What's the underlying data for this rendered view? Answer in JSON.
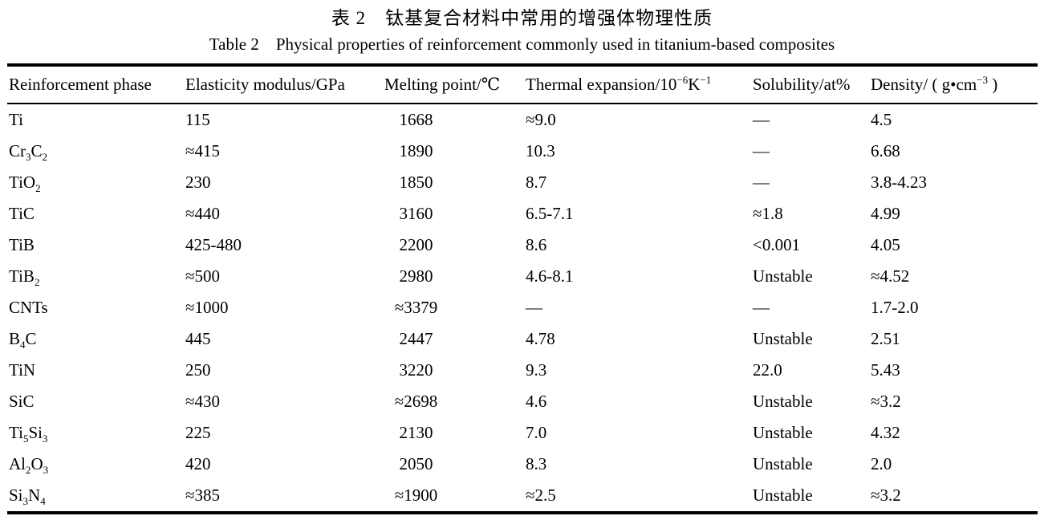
{
  "page": {
    "background_color": "#ffffff",
    "text_color": "#000000"
  },
  "titles": {
    "chinese": "表 2 钛基复合材料中常用的增强体物理性质",
    "english": "Table 2 Physical properties of reinforcement commonly used in titanium-based composites"
  },
  "table": {
    "columns": [
      {
        "key": "phase",
        "label": "Reinforcement phase"
      },
      {
        "key": "modulus",
        "label": "Elasticity modulus/GPa"
      },
      {
        "key": "melting",
        "label": "Melting point/℃"
      },
      {
        "key": "expansion",
        "label": "Thermal expansion/10^{−6}K^{−1}"
      },
      {
        "key": "solubility",
        "label": "Solubility/at%"
      },
      {
        "key": "density",
        "label": "Density/ ( g•cm^{−3} )"
      }
    ],
    "rows": [
      [
        "Ti",
        "115",
        "1668",
        "≈9.0",
        "—",
        "4.5"
      ],
      [
        "Cr_{3}C_{2}",
        "≈415",
        "1890",
        "10.3",
        "—",
        "6.68"
      ],
      [
        "TiO_{2}",
        "230",
        "1850",
        "8.7",
        "—",
        "3.8-4.23"
      ],
      [
        "TiC",
        "≈440",
        "3160",
        "6.5-7.1",
        "≈1.8",
        "4.99"
      ],
      [
        "TiB",
        "425-480",
        "2200",
        "8.6",
        "<0.001",
        "4.05"
      ],
      [
        "TiB_{2}",
        "≈500",
        "2980",
        "4.6-8.1",
        "Unstable",
        "≈4.52"
      ],
      [
        "CNTs",
        "≈1000",
        "≈3379",
        "—",
        "—",
        "1.7-2.0"
      ],
      [
        "B_{4}C",
        "445",
        "2447",
        "4.78",
        "Unstable",
        "2.51"
      ],
      [
        "TiN",
        "250",
        "3220",
        "9.3",
        "22.0",
        "5.43"
      ],
      [
        "SiC",
        "≈430",
        "≈2698",
        "4.6",
        "Unstable",
        "≈3.2"
      ],
      [
        "Ti_{5}Si_{3}",
        "225",
        "2130",
        "7.0",
        "Unstable",
        "4.32"
      ],
      [
        "Al_{2}O_{3}",
        "420",
        "2050",
        "8.3",
        "Unstable",
        "2.0"
      ],
      [
        "Si_{3}N_{4}",
        "≈385",
        "≈1900",
        "≈2.5",
        "Unstable",
        "≈3.2"
      ]
    ]
  }
}
